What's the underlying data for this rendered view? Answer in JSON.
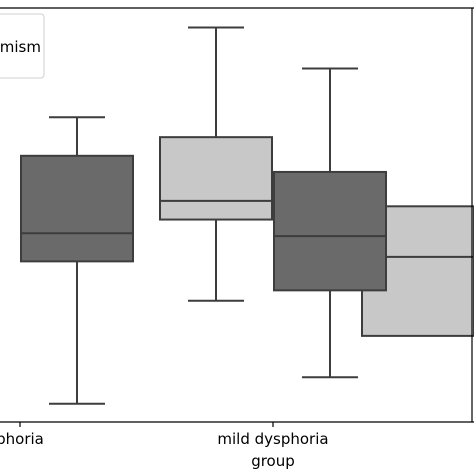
{
  "chart_data": {
    "type": "boxplot",
    "xlabel": "group",
    "ylabel": "",
    "categories": [
      "phoria",
      "mild dysphoria",
      ""
    ],
    "legend": {
      "placement": "top-left",
      "entries": [
        "mism"
      ]
    },
    "grid": false,
    "ylim": [
      0,
      100
    ],
    "series": [
      {
        "name": "",
        "color": "#c8c8c8",
        "boxes": [
          {
            "category": "mild dysphoria",
            "whislo": 29.3,
            "q1": 48.9,
            "med": 53.4,
            "q3": 68.8,
            "whishi": 95.3
          },
          {
            "category": "",
            "whislo": null,
            "q1": 20.8,
            "med": 39.9,
            "q3": 52.1,
            "whishi": null
          }
        ]
      },
      {
        "name": "",
        "color": "#6a6a6a",
        "boxes": [
          {
            "category": "phoria",
            "whislo": 4.4,
            "q1": 38.8,
            "med": 45.6,
            "q3": 64.3,
            "whishi": 73.6
          },
          {
            "category": "mild dysphoria",
            "whislo": 10.8,
            "q1": 31.8,
            "med": 44.9,
            "q3": 60.4,
            "whishi": 85.4
          }
        ]
      }
    ]
  }
}
